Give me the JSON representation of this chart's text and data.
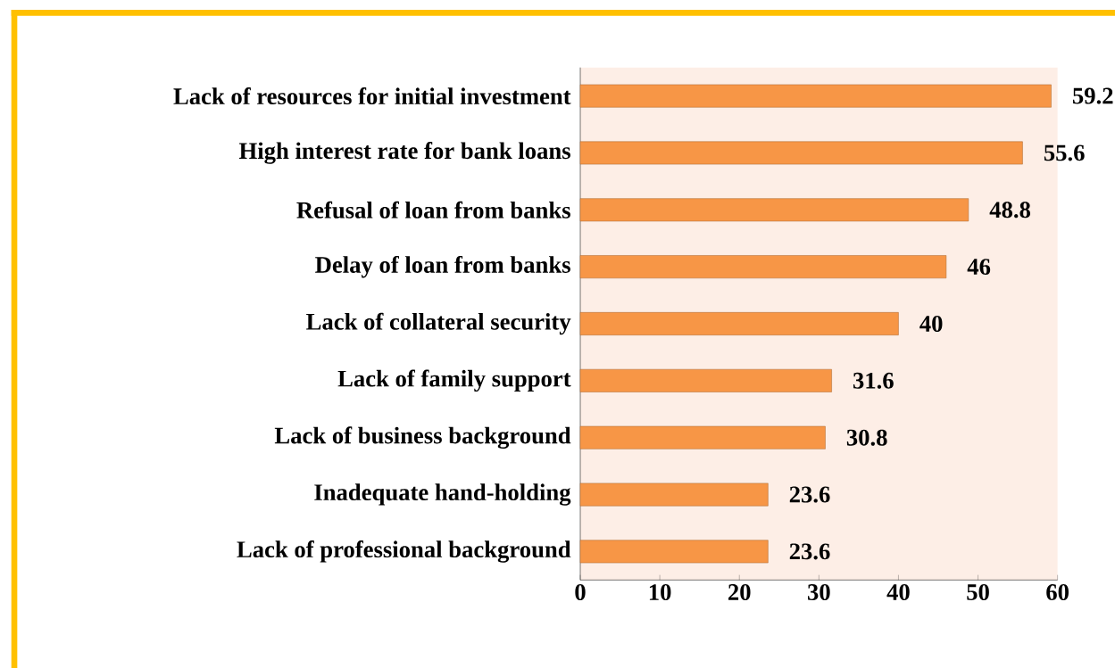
{
  "chart_data": {
    "type": "bar",
    "orientation": "horizontal",
    "categories": [
      "Lack of resources for initial investment",
      "High interest rate for bank loans",
      "Refusal of loan from banks",
      "Delay of loan from banks",
      "Lack of collateral security",
      "Lack of family support",
      "Lack of business background",
      "Inadequate hand-holding",
      "Lack of professional background"
    ],
    "values": [
      59.2,
      55.6,
      48.8,
      46,
      40,
      31.6,
      30.8,
      23.6,
      23.6
    ],
    "color": "#f79646",
    "xlim": [
      0,
      60
    ],
    "xticks": [
      0,
      10,
      20,
      30,
      40,
      50,
      60
    ],
    "data_labels": true
  }
}
